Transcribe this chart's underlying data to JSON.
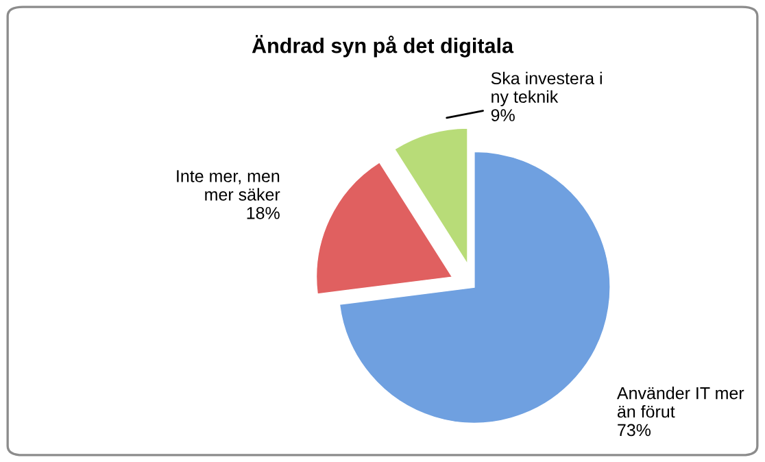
{
  "chart_data": {
    "type": "pie",
    "title": "Ändrad syn på det digitala",
    "categories": [
      "Använder IT mer än förut",
      "Inte mer, men mer säker",
      "Ska investera i ny teknik"
    ],
    "values": [
      73,
      18,
      9
    ],
    "colors": [
      "#6fa0e0",
      "#e06060",
      "#b8dc78"
    ],
    "value_labels": [
      "73%",
      "18%",
      "9%"
    ],
    "legend": false
  }
}
